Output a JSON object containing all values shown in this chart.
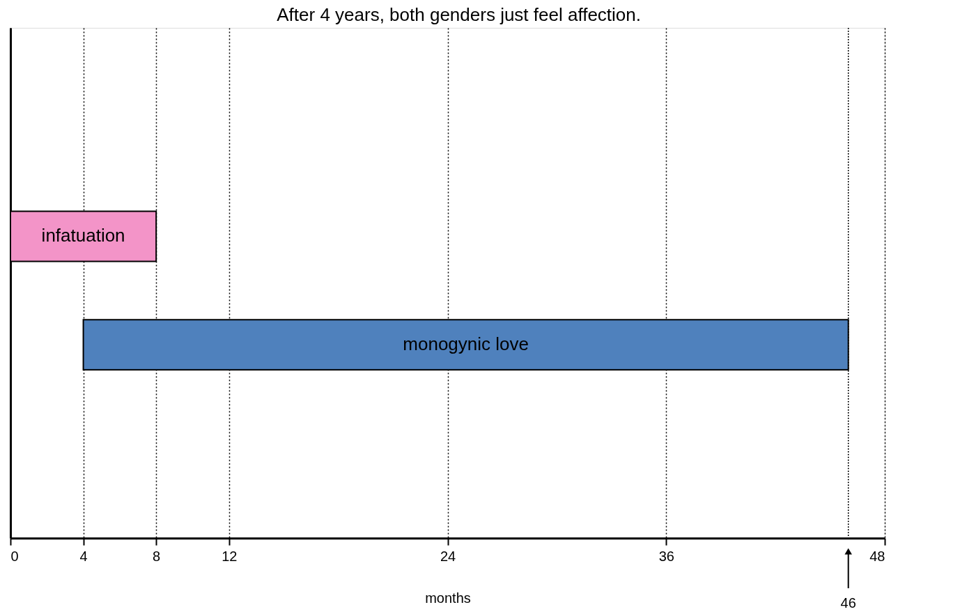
{
  "chart_data": {
    "type": "bar",
    "orientation": "horizontal",
    "categories": [
      "infatuation",
      "monogynic love"
    ],
    "base": [
      0,
      4
    ],
    "values": [
      8,
      42
    ],
    "colors": [
      "#f394c8",
      "#4f81bd"
    ],
    "xlim": [
      0,
      48
    ],
    "xticks": [
      0,
      4,
      8,
      12,
      24,
      36,
      48
    ],
    "xlabel": "months",
    "grid": "x",
    "ref_lines": [
      {
        "axis": "x",
        "value": 46,
        "label": "46",
        "line_style": "dotted"
      }
    ],
    "annotations": [
      "After 4 years, both genders just feel affection."
    ]
  }
}
